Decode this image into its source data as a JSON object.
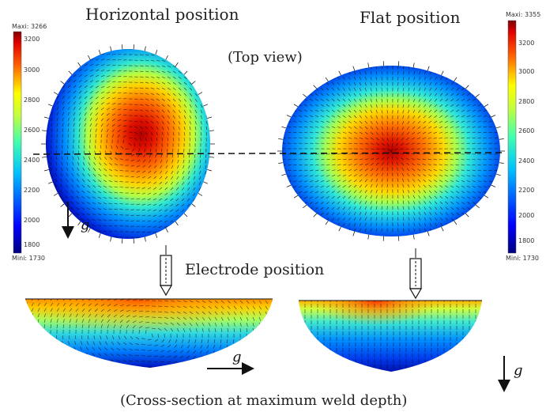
{
  "labels": {
    "horizontal_position": "Horizontal position",
    "flat_position": "Flat position",
    "top_view": "(Top view)",
    "electrode_position": "Electrode position",
    "cross_section": "(Cross-section at maximum weld depth)",
    "gravity": "g"
  },
  "colorbars": {
    "left": {
      "max_label": "Maxi: 3266",
      "min_label": "Mini: 1730",
      "ticks": [
        "3200",
        "3000",
        "2800",
        "2600",
        "2400",
        "2200",
        "2000",
        "1800"
      ]
    },
    "right": {
      "max_label": "Maxi: 3355",
      "min_label": "Mini: 1730",
      "ticks": [
        "3200",
        "3000",
        "2800",
        "2600",
        "2400",
        "2200",
        "2000",
        "1800"
      ]
    }
  },
  "colormap": [
    "#00007f",
    "#0000ff",
    "#0080ff",
    "#00ffff",
    "#80ff80",
    "#ffff00",
    "#ff8000",
    "#ff0000",
    "#7f0000"
  ]
}
